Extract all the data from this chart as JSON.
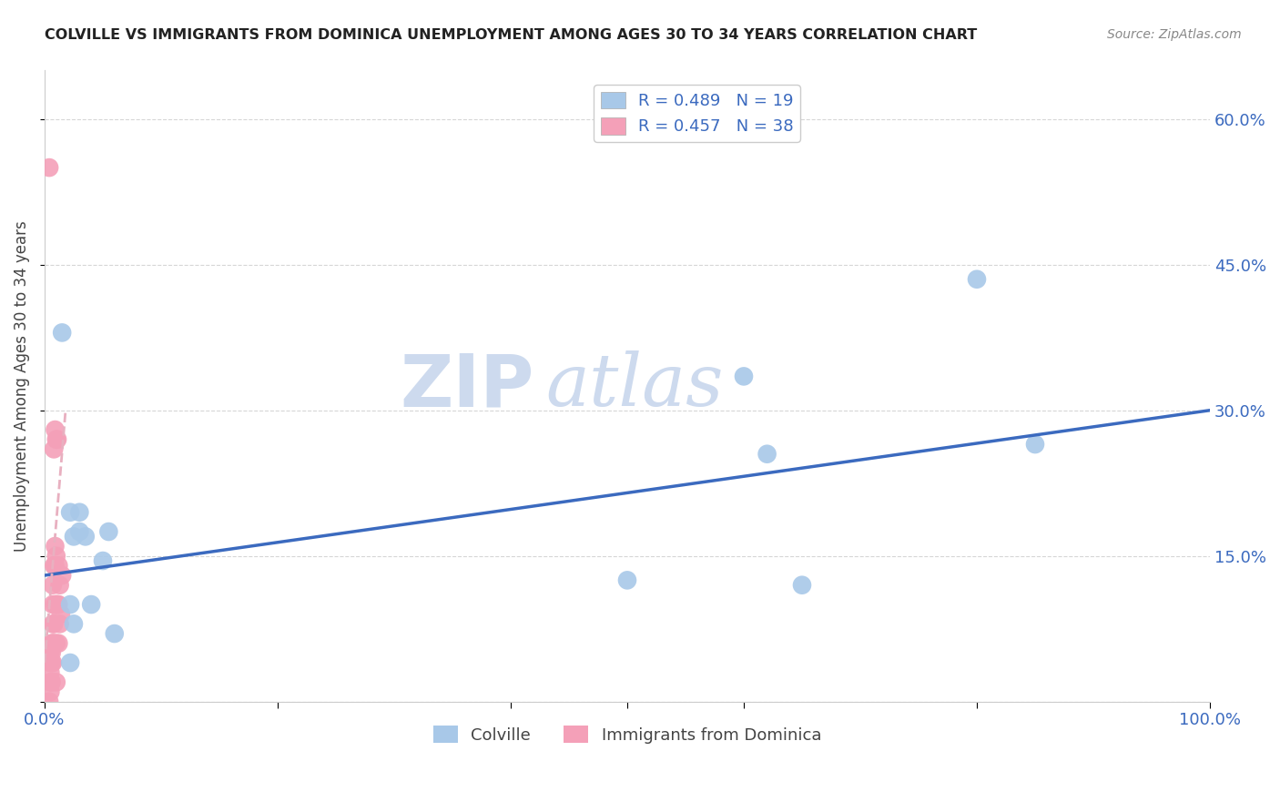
{
  "title": "COLVILLE VS IMMIGRANTS FROM DOMINICA UNEMPLOYMENT AMONG AGES 30 TO 34 YEARS CORRELATION CHART",
  "source": "Source: ZipAtlas.com",
  "ylabel": "Unemployment Among Ages 30 to 34 years",
  "xlim": [
    0,
    1.0
  ],
  "ylim": [
    0,
    0.65
  ],
  "ytick_positions": [
    0.0,
    0.15,
    0.3,
    0.45,
    0.6
  ],
  "ytick_labels": [
    "",
    "15.0%",
    "30.0%",
    "45.0%",
    "60.0%"
  ],
  "colville_color": "#a8c8e8",
  "dominica_color": "#f4a0b8",
  "colville_line_color": "#3b6abf",
  "dominica_line_color": "#e06080",
  "dominica_trendline_color": "#e8b0c0",
  "R_colville": 0.489,
  "N_colville": 19,
  "R_dominica": 0.457,
  "N_dominica": 38,
  "legend_text_color": "#3b6abf",
  "background_color": "#ffffff",
  "grid_color": "#cccccc",
  "watermark_zip": "ZIP",
  "watermark_atlas": "atlas",
  "colville_x": [
    0.015,
    0.022,
    0.025,
    0.03,
    0.05,
    0.055,
    0.04,
    0.06,
    0.022,
    0.5,
    0.6,
    0.65,
    0.8,
    0.62,
    0.85,
    0.03,
    0.035,
    0.022,
    0.025
  ],
  "colville_y": [
    0.38,
    0.195,
    0.17,
    0.175,
    0.145,
    0.175,
    0.1,
    0.07,
    0.04,
    0.125,
    0.335,
    0.12,
    0.435,
    0.255,
    0.265,
    0.195,
    0.17,
    0.1,
    0.08
  ],
  "dominica_x": [
    0.004,
    0.005,
    0.005,
    0.005,
    0.005,
    0.005,
    0.006,
    0.006,
    0.006,
    0.006,
    0.007,
    0.007,
    0.007,
    0.007,
    0.007,
    0.008,
    0.008,
    0.008,
    0.008,
    0.009,
    0.009,
    0.009,
    0.009,
    0.01,
    0.01,
    0.01,
    0.01,
    0.01,
    0.011,
    0.011,
    0.012,
    0.012,
    0.012,
    0.013,
    0.013,
    0.014,
    0.015,
    0.004
  ],
  "dominica_y": [
    0.0,
    0.01,
    0.02,
    0.03,
    0.04,
    0.05,
    0.02,
    0.04,
    0.05,
    0.06,
    0.04,
    0.06,
    0.08,
    0.1,
    0.12,
    0.06,
    0.08,
    0.14,
    0.26,
    0.1,
    0.14,
    0.16,
    0.28,
    0.02,
    0.06,
    0.1,
    0.15,
    0.27,
    0.1,
    0.27,
    0.06,
    0.1,
    0.14,
    0.08,
    0.12,
    0.09,
    0.13,
    0.55
  ],
  "colville_trendline_x": [
    0.0,
    1.0
  ],
  "colville_trendline_y": [
    0.13,
    0.3
  ],
  "dominica_trendline_x": [
    0.0,
    0.018
  ],
  "dominica_trendline_y": [
    0.04,
    0.3
  ]
}
